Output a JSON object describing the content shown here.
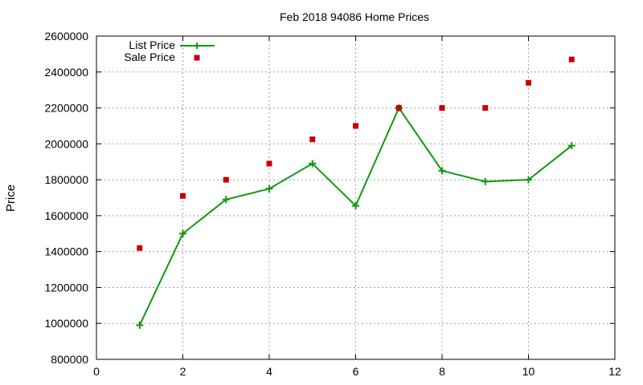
{
  "chart_data": {
    "type": "line",
    "title": "Feb 2018 94086 Home Prices",
    "xlabel": "",
    "ylabel": "Price",
    "xlim": [
      0,
      12
    ],
    "ylim": [
      800000,
      2600000
    ],
    "xticks": [
      0,
      2,
      4,
      6,
      8,
      10,
      12
    ],
    "yticks": [
      800000,
      1000000,
      1200000,
      1400000,
      1600000,
      1800000,
      2000000,
      2200000,
      2400000,
      2600000
    ],
    "grid": true,
    "legend_position": "top-left",
    "series": [
      {
        "name": "List Price",
        "style": "line-with-plus-markers",
        "color": "#109910",
        "x": [
          1,
          2,
          3,
          4,
          5,
          6,
          7,
          8,
          9,
          10,
          11
        ],
        "y": [
          990000,
          1500000,
          1690000,
          1750000,
          1890000,
          1655000,
          2200000,
          1850000,
          1790000,
          1800000,
          1990000
        ]
      },
      {
        "name": "Sale Price",
        "style": "square-markers",
        "color": "#c80000",
        "x": [
          1,
          2,
          3,
          4,
          5,
          6,
          7,
          8,
          9,
          10,
          11
        ],
        "y": [
          1420000,
          1710000,
          1800000,
          1890000,
          2025000,
          2100000,
          2200000,
          2200000,
          2200000,
          2340000,
          2470000
        ]
      }
    ]
  }
}
